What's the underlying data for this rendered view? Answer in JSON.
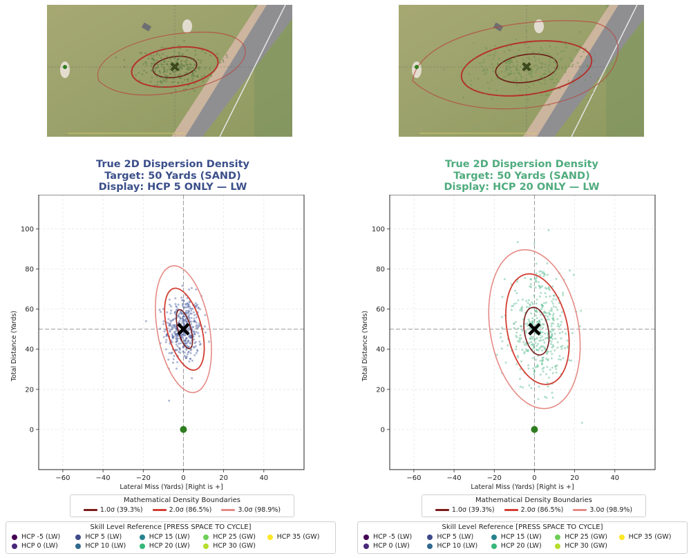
{
  "panels": [
    {
      "title_line1": "True 2D Dispersion Density",
      "title_line2": "Target: 50 Yards (SAND)",
      "title_line3": "Display: HCP 5 ONLY — LW",
      "title_color": "#3b4f8a",
      "point_color": "#4a5fa0"
    },
    {
      "title_line1": "True 2D Dispersion Density",
      "title_line2": "Target: 50 Yards (SAND)",
      "title_line3": "Display: HCP 20 ONLY — LW",
      "title_color": "#4fab7e",
      "point_color": "#4fb88a"
    }
  ],
  "axes": {
    "xlabel": "Lateral Miss (Yards) [Right is +]",
    "ylabel": "Total Distance (Yards)",
    "xlim": [
      -72,
      60
    ],
    "ylim": [
      -20,
      117
    ],
    "xticks": [
      -60,
      -40,
      -20,
      0,
      20,
      40
    ],
    "yticks": [
      0,
      20,
      40,
      60,
      80,
      100
    ],
    "grid": true
  },
  "chart_data": [
    {
      "type": "scatter",
      "series": [
        {
          "name": "HCP 5 (LW)",
          "n_points": 400,
          "mean_x": 0,
          "mean_y": 50,
          "sd_x": 4.6,
          "sd_y": 8.5
        }
      ],
      "target": {
        "x": 0,
        "y": 50
      },
      "tee": {
        "x": 0,
        "y": 0
      },
      "contours": [
        {
          "level": "1.0σ (39.3%)",
          "cx": 0.5,
          "cy": 50,
          "rx": 3.2,
          "ry": 10,
          "rot": -15
        },
        {
          "level": "2.0σ (86.5%)",
          "cx": 0.5,
          "cy": 50,
          "rx": 8.5,
          "ry": 21,
          "rot": -15
        },
        {
          "level": "3.0σ (98.9%)",
          "cx": 0,
          "cy": 50,
          "rx": 13,
          "ry": 32,
          "rot": -10
        }
      ]
    },
    {
      "type": "scatter",
      "series": [
        {
          "name": "HCP 20 (LW)",
          "n_points": 400,
          "mean_x": 2,
          "mean_y": 50,
          "sd_x": 8,
          "sd_y": 14
        }
      ],
      "target": {
        "x": 0,
        "y": 50
      },
      "tee": {
        "x": 0,
        "y": 0
      },
      "contours": [
        {
          "level": "1.0σ (39.3%)",
          "cx": 1,
          "cy": 49,
          "rx": 6,
          "ry": 12,
          "rot": -10
        },
        {
          "level": "2.0σ (86.5%)",
          "cx": 1.5,
          "cy": 50,
          "rx": 15,
          "ry": 28,
          "rot": -12
        },
        {
          "level": "3.0σ (98.9%)",
          "cx": 0,
          "cy": 50,
          "rx": 22,
          "ry": 40,
          "rot": -10
        }
      ]
    }
  ],
  "density_legend": {
    "title": "Mathematical Density Boundaries",
    "items": [
      {
        "label": "1.0σ (39.3%)",
        "color": "#7a1a1a"
      },
      {
        "label": "2.0σ (86.5%)",
        "color": "#d23c32"
      },
      {
        "label": "3.0σ (98.9%)",
        "color": "#e58a85"
      }
    ]
  },
  "skill_legend": {
    "title": "Skill Level Reference [PRESS SPACE TO CYCLE]",
    "items": [
      {
        "label": "HCP -5 (LW)",
        "color": "#440154"
      },
      {
        "label": "HCP 5 (LW)",
        "color": "#3e4a89"
      },
      {
        "label": "HCP 15 (LW)",
        "color": "#26828e"
      },
      {
        "label": "HCP 25 (GW)",
        "color": "#6ece58"
      },
      {
        "label": "HCP 35 (GW)",
        "color": "#fde725"
      },
      {
        "label": "HCP 0 (LW)",
        "color": "#482878"
      },
      {
        "label": "HCP 10 (LW)",
        "color": "#31688e"
      },
      {
        "label": "HCP 20 (LW)",
        "color": "#35b779"
      },
      {
        "label": "HCP 30 (GW)",
        "color": "#b5de2b"
      }
    ]
  }
}
